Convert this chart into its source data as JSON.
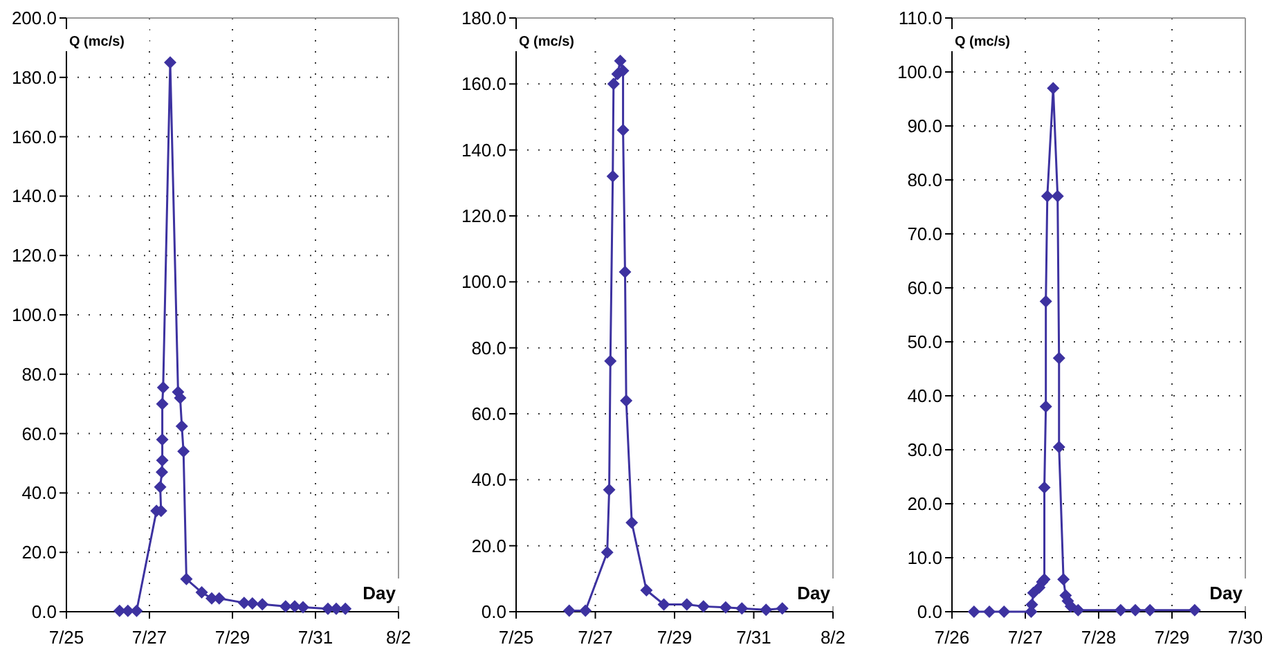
{
  "chart_data": [
    {
      "type": "line",
      "ylabel": "Q (mc/s)",
      "xlabel": "Day",
      "marker": "diamond",
      "line_style": "solid",
      "grid": true,
      "xlim": [
        "--07-25",
        "--08-02"
      ],
      "xticks": [
        {
          "value": "--07-25",
          "label": "7/25"
        },
        {
          "value": "--07-27",
          "label": "7/27"
        },
        {
          "value": "--07-29",
          "label": "7/29"
        },
        {
          "value": "--07-31",
          "label": "7/31"
        },
        {
          "value": "--08-02",
          "label": "8/2"
        }
      ],
      "ylim": [
        0,
        200
      ],
      "yticks": [
        {
          "value": 0,
          "label": "0.0"
        },
        {
          "value": 20,
          "label": "20.0"
        },
        {
          "value": 40,
          "label": "40.0"
        },
        {
          "value": 60,
          "label": "60.0"
        },
        {
          "value": 80,
          "label": "80.0"
        },
        {
          "value": 100,
          "label": "100.0"
        },
        {
          "value": 120,
          "label": "120.0"
        },
        {
          "value": 140,
          "label": "140.0"
        },
        {
          "value": 160,
          "label": "160.0"
        },
        {
          "value": 180,
          "label": "180.0"
        },
        {
          "value": 200,
          "label": "200.0"
        }
      ],
      "series": [
        {
          "color": "#3d32a0",
          "x": [
            "--07-26T06:43",
            "--07-26T11:31",
            "--07-26T16:34",
            "--07-27T04:05",
            "--07-27T06:43",
            "--07-27T06:14",
            "--07-27T07:12",
            "--07-27T07:26",
            "--07-27T07:26",
            "--07-27T07:26",
            "--07-27T07:55",
            "--07-27T12:00",
            "--07-27T16:34",
            "--07-27T17:46",
            "--07-27T18:43",
            "--07-27T19:41",
            "--07-27T21:22",
            "--07-28T06:14",
            "--07-28T12:00",
            "--07-28T16:19",
            "--07-29T06:43",
            "--07-29T11:31",
            "--07-29T17:17",
            "--07-30T06:43",
            "--07-30T12:00",
            "--07-30T16:48",
            "--07-31T07:12",
            "--07-31T12:00",
            "--07-31T17:17"
          ],
          "values": [
            0.3,
            0.3,
            0.3,
            34,
            34,
            42,
            47,
            51,
            58,
            70,
            75.5,
            185,
            74,
            72,
            62.5,
            54,
            11,
            6.5,
            4.5,
            4.5,
            3,
            2.8,
            2.5,
            1.8,
            1.8,
            1.5,
            1,
            1,
            1
          ]
        }
      ]
    },
    {
      "type": "line",
      "ylabel": "Q (mc/s)",
      "xlabel": "Day",
      "marker": "diamond",
      "line_style": "solid",
      "grid": true,
      "xlim": [
        "--07-25",
        "--08-02"
      ],
      "xticks": [
        {
          "value": "--07-25",
          "label": "7/25"
        },
        {
          "value": "--07-27",
          "label": "7/27"
        },
        {
          "value": "--07-29",
          "label": "7/29"
        },
        {
          "value": "--07-31",
          "label": "7/31"
        },
        {
          "value": "--08-02",
          "label": "8/2"
        }
      ],
      "ylim": [
        0,
        180
      ],
      "yticks": [
        {
          "value": 0,
          "label": "0.0"
        },
        {
          "value": 20,
          "label": "20.0"
        },
        {
          "value": 40,
          "label": "40.0"
        },
        {
          "value": 60,
          "label": "60.0"
        },
        {
          "value": 80,
          "label": "80.0"
        },
        {
          "value": 100,
          "label": "100.0"
        },
        {
          "value": 120,
          "label": "120.0"
        },
        {
          "value": 140,
          "label": "140.0"
        },
        {
          "value": 160,
          "label": "160.0"
        },
        {
          "value": 180,
          "label": "180.0"
        }
      ],
      "series": [
        {
          "color": "#3d32a0",
          "x": [
            "--07-26T08:10",
            "--07-26T18:00",
            "--07-27T07:12",
            "--07-27T08:24",
            "--07-27T09:07",
            "--07-27T10:34",
            "--07-27T11:02",
            "--07-27T13:26",
            "--07-27T15:07",
            "--07-27T16:48",
            "--07-27T16:48",
            "--07-27T18:00",
            "--07-27T18:43",
            "--07-27T22:05",
            "--07-28T06:58",
            "--07-28T17:31",
            "--07-29T07:26",
            "--07-29T17:31",
            "--07-30T06:58",
            "--07-30T16:48",
            "--07-31T07:26",
            "--07-31T17:17"
          ],
          "values": [
            0.3,
            0.3,
            18,
            37,
            76,
            132,
            160,
            163,
            167,
            164,
            146,
            103,
            64,
            27,
            6.5,
            2.2,
            2.2,
            1.6,
            1.3,
            1,
            0.6,
            1
          ]
        }
      ]
    },
    {
      "type": "line",
      "ylabel": "Q (mc/s)",
      "xlabel": "Day",
      "marker": "diamond",
      "line_style": "solid",
      "grid": true,
      "xlim": [
        "--07-26",
        "--07-30"
      ],
      "xticks": [
        {
          "value": "--07-26",
          "label": "7/26"
        },
        {
          "value": "--07-27",
          "label": "7/27"
        },
        {
          "value": "--07-28",
          "label": "7/28"
        },
        {
          "value": "--07-29",
          "label": "7/29"
        },
        {
          "value": "--07-30",
          "label": "7/30"
        }
      ],
      "ylim": [
        0,
        110
      ],
      "yticks": [
        {
          "value": 0,
          "label": "0.0"
        },
        {
          "value": 10,
          "label": "10.0"
        },
        {
          "value": 20,
          "label": "20.0"
        },
        {
          "value": 30,
          "label": "30.0"
        },
        {
          "value": 40,
          "label": "40.0"
        },
        {
          "value": 50,
          "label": "50.0"
        },
        {
          "value": 60,
          "label": "60.0"
        },
        {
          "value": 70,
          "label": "70.0"
        },
        {
          "value": 80,
          "label": "80.0"
        },
        {
          "value": 90,
          "label": "90.0"
        },
        {
          "value": 100,
          "label": "100.0"
        },
        {
          "value": 110,
          "label": "110.0"
        }
      ],
      "series": [
        {
          "color": "#3d32a0",
          "x": [
            "--07-26T07:12",
            "--07-26T12:14",
            "--07-26T17:02",
            "--07-27T01:55",
            "--07-27T02:10",
            "--07-27T02:38",
            "--07-27T04:34",
            "--07-27T05:31",
            "--07-27T06:14",
            "--07-27T06:14",
            "--07-27T06:43",
            "--07-27T06:43",
            "--07-27T07:12",
            "--07-27T09:07",
            "--07-27T10:34",
            "--07-27T11:02",
            "--07-27T11:02",
            "--07-27T12:29",
            "--07-27T13:12",
            "--07-27T13:55",
            "--07-27T14:53",
            "--07-27T17:17",
            "--07-28T07:12",
            "--07-28T12:00",
            "--07-28T16:48",
            "--07-29T07:26"
          ],
          "values": [
            0,
            0,
            0,
            0,
            1.3,
            3.5,
            4.5,
            5.5,
            6,
            23,
            38,
            57.5,
            77,
            97,
            77,
            47,
            30.5,
            6,
            3,
            2,
            1,
            0.3,
            0.3,
            0.3,
            0.3,
            0.3
          ]
        }
      ]
    }
  ]
}
